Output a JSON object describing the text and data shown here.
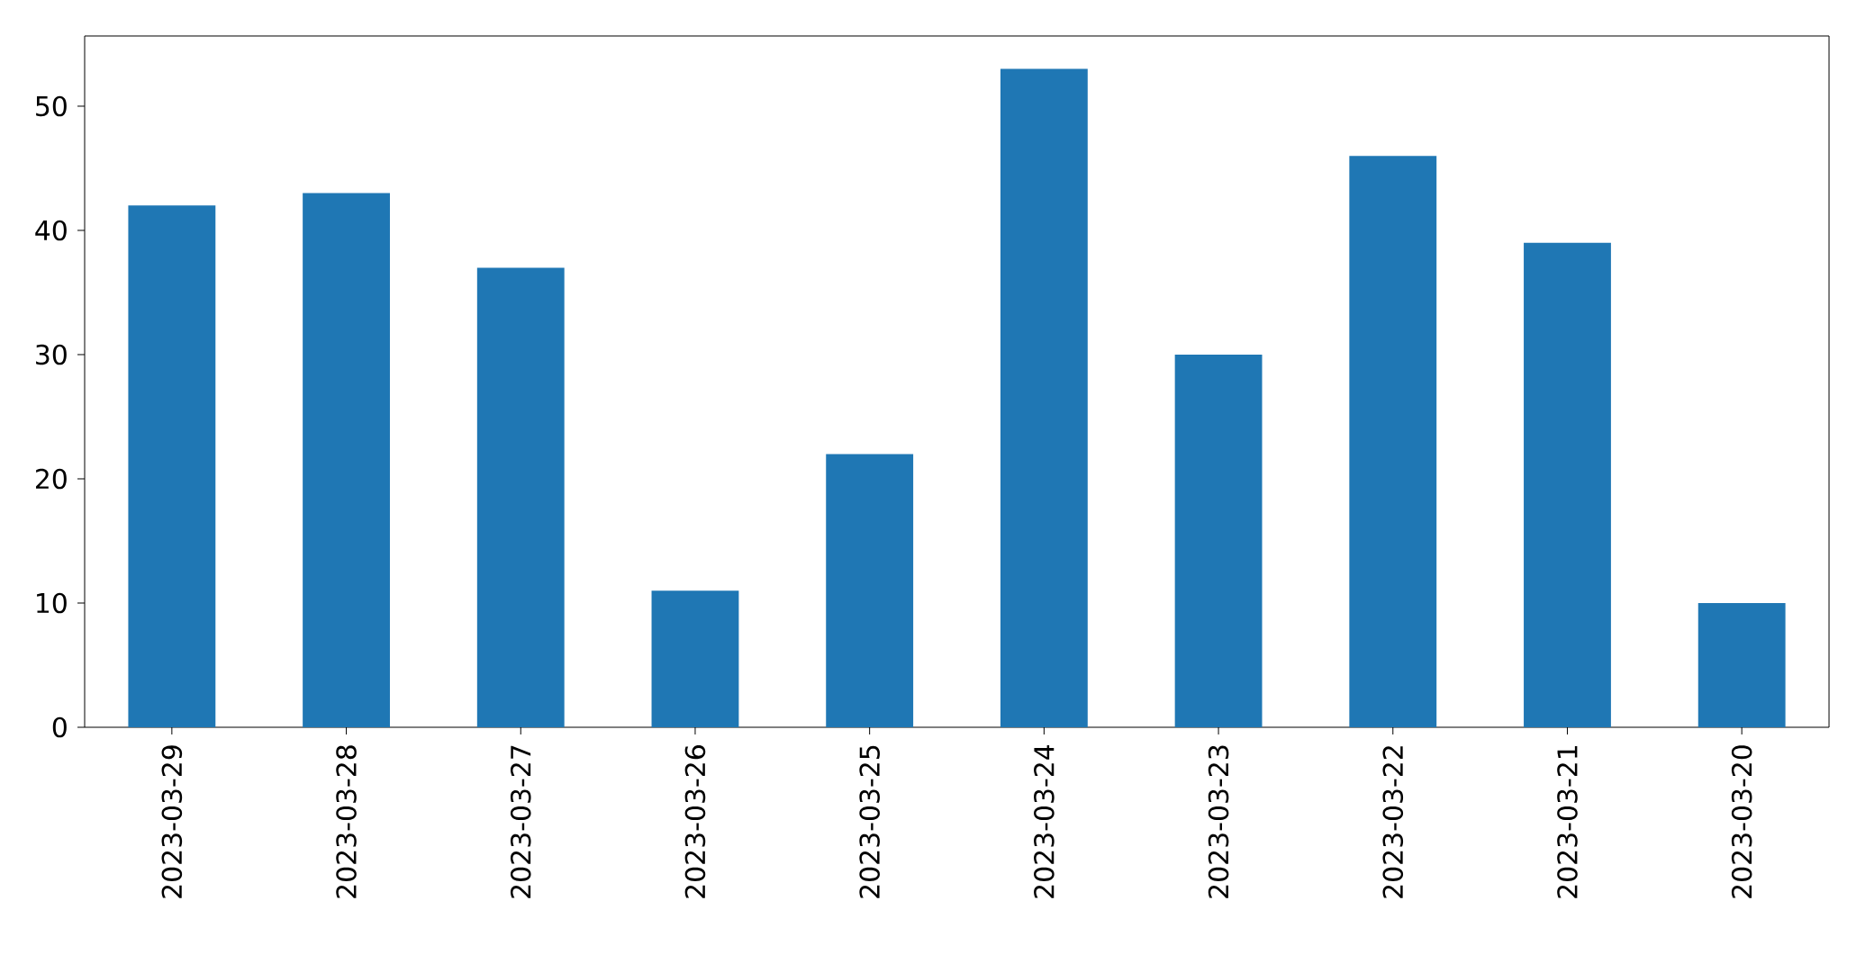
{
  "chart_data": {
    "type": "bar",
    "categories": [
      "2023-03-29",
      "2023-03-28",
      "2023-03-27",
      "2023-03-26",
      "2023-03-25",
      "2023-03-24",
      "2023-03-23",
      "2023-03-22",
      "2023-03-21",
      "2023-03-20"
    ],
    "values": [
      42,
      43,
      37,
      11,
      22,
      53,
      30,
      46,
      39,
      10
    ],
    "color": "#1f77b4",
    "ylim": [
      0,
      55.65
    ],
    "yticks": [
      0,
      10,
      20,
      30,
      40,
      50
    ]
  }
}
